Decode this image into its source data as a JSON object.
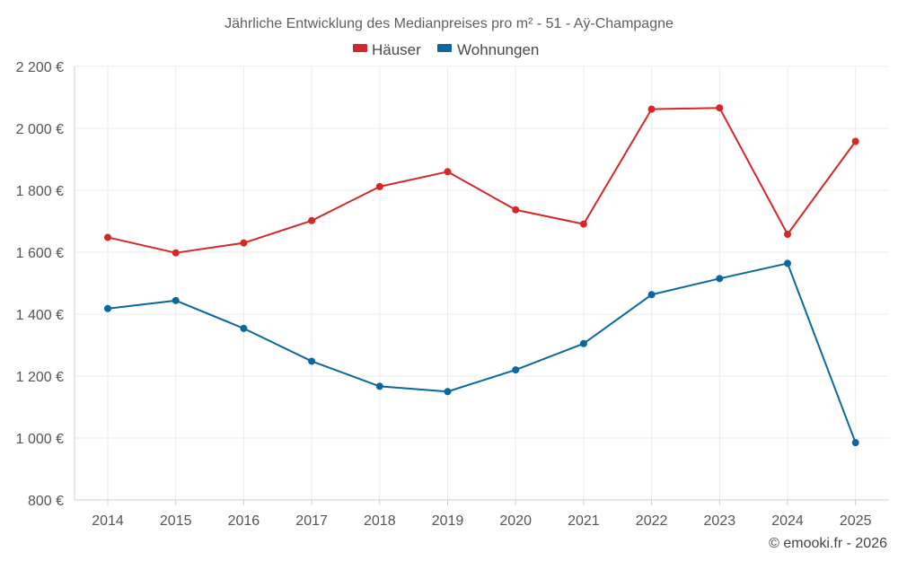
{
  "chart_data": {
    "type": "line",
    "title": "Jährliche Entwicklung des Medianpreises pro m² - 51 - Aÿ-Champagne",
    "xlabel": "",
    "ylabel": "",
    "categories": [
      "2014",
      "2015",
      "2016",
      "2017",
      "2018",
      "2019",
      "2020",
      "2021",
      "2022",
      "2023",
      "2024",
      "2025"
    ],
    "series": [
      {
        "name": "Häuser",
        "color": "#d62728",
        "values": [
          1648,
          1598,
          1630,
          1702,
          1812,
          1860,
          1737,
          1691,
          2062,
          2066,
          1658,
          1958
        ]
      },
      {
        "name": "Wohnungen",
        "color": "#0868a0",
        "values": [
          1418,
          1444,
          1354,
          1248,
          1167,
          1150,
          1220,
          1305,
          1463,
          1515,
          1564,
          985
        ]
      }
    ],
    "ylim": [
      800,
      2200
    ],
    "yticks": [
      800,
      1000,
      1200,
      1400,
      1600,
      1800,
      2000,
      2200
    ],
    "ytick_labels": [
      "800 €",
      "1 000 €",
      "1 200 €",
      "1 400 €",
      "1 600 €",
      "1 800 €",
      "2 000 €",
      "2 200 €"
    ],
    "grid": true,
    "legend_position": "top-center"
  },
  "credit": "© emooki.fr - 2026"
}
